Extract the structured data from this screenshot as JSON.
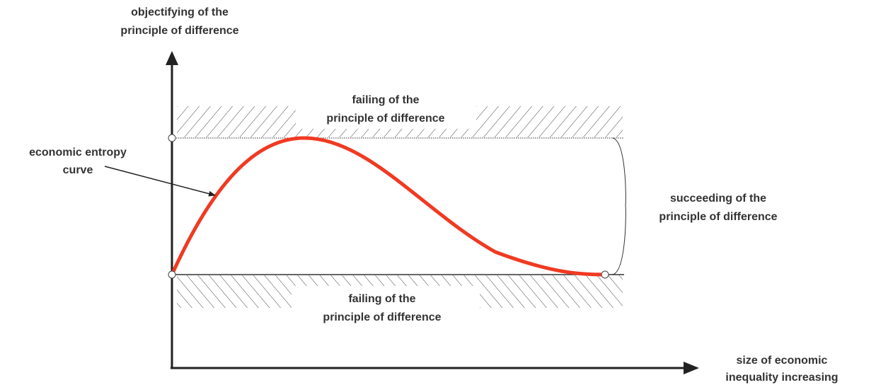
{
  "axes": {
    "y_label": [
      "objectifying of the",
      "principle of difference"
    ],
    "x_label": [
      "size of economic",
      "inequality increasing"
    ]
  },
  "labels": {
    "upper_failing": [
      "failing of the",
      "principle of difference"
    ],
    "lower_failing": [
      "failing of the",
      "principle of difference"
    ],
    "curve": [
      "economic entropy",
      "curve"
    ],
    "succeeding": [
      "succeeding of the",
      "principle of difference"
    ]
  }
}
